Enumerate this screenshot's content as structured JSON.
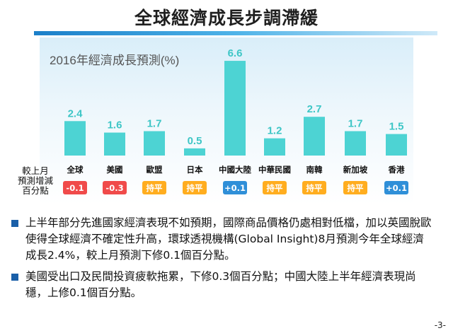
{
  "title": "全球經濟成長步調滯緩",
  "chart_data": {
    "type": "bar",
    "title": "2016年經濟成長預測(%)",
    "categories": [
      "全球",
      "美國",
      "歐盟",
      "日本",
      "中國大陸",
      "中華民國",
      "南韓",
      "新加坡",
      "香港"
    ],
    "values": [
      2.4,
      1.6,
      1.7,
      0.5,
      6.6,
      1.2,
      2.7,
      1.7,
      1.5
    ],
    "value_labels": [
      "2.4",
      "1.6",
      "1.7",
      "0.5",
      "6.6",
      "1.2",
      "2.7",
      "1.7",
      "1.5"
    ],
    "ylim": [
      0,
      7
    ],
    "bar_color": "#4dd3d3",
    "change_row_label": [
      "較上月",
      "預測增減",
      "百分點"
    ],
    "changes": [
      "-0.1",
      "-0.3",
      "持平",
      "持平",
      "+0.1",
      "持平",
      "持平",
      "持平",
      "+0.1"
    ],
    "change_colors": {
      "down": "#f04a4a",
      "flat": "#ffad1f",
      "up": "#2f8fd8"
    },
    "change_kinds": [
      "down",
      "down",
      "flat",
      "flat",
      "up",
      "flat",
      "flat",
      "flat",
      "up"
    ]
  },
  "bullets": [
    "上半年部分先進國家經濟表現不如預期，國際商品價格仍處相對低檔，加以英國脫歐使得全球經濟不確定性升高，環球透視機構(Global Insight)8月預測今年全球經濟成長2.4%，較上月預測下修0.1個百分點。",
    "美國受出口及民間投資疲軟拖累，下修0.3個百分點；中國大陸上半年經濟表現尚穩，上修0.1個百分點。"
  ],
  "page_number": "-3-"
}
